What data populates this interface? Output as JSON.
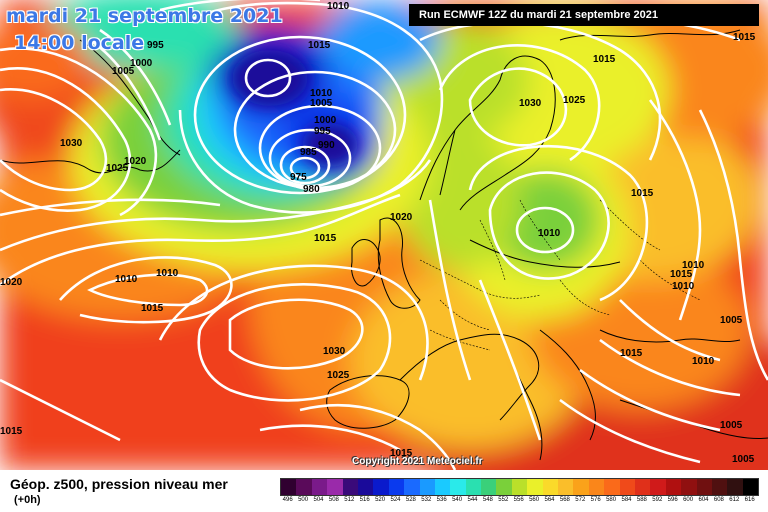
{
  "header": {
    "date": "mardi 21 septembre 2021",
    "time": "14:00 locale",
    "run": "Run ECMWF 12Z du mardi 21 septembre 2021"
  },
  "copyright": "Copyright 2021 Meteociel.fr",
  "footer": {
    "title": "Géop. z500, pression niveau mer",
    "subtitle": "(+0h)"
  },
  "legend": {
    "values": [
      "496",
      "500",
      "504",
      "508",
      "512",
      "516",
      "520",
      "524",
      "528",
      "532",
      "536",
      "540",
      "544",
      "548",
      "552",
      "556",
      "560",
      "564",
      "568",
      "572",
      "576",
      "580",
      "584",
      "588",
      "592",
      "596",
      "600",
      "604",
      "608",
      "612",
      "616"
    ],
    "colors": [
      "#300030",
      "#5a0a5a",
      "#7a1a8a",
      "#9a2aaa",
      "#3a0a7a",
      "#1a0a9a",
      "#0a1acc",
      "#0a3aee",
      "#1a6aff",
      "#1a9aff",
      "#1acaff",
      "#2aeaea",
      "#2ae0b0",
      "#3ad07a",
      "#7ad03a",
      "#bae02a",
      "#eaf02a",
      "#fada2a",
      "#fabe2a",
      "#faa21a",
      "#fa861a",
      "#fa6a1a",
      "#f04a1a",
      "#e0301a",
      "#d01a1a",
      "#b01010",
      "#901010",
      "#701010",
      "#501010",
      "#301010",
      "#000000"
    ]
  },
  "isobars": [
    {
      "label": "1010",
      "pos": "top-center"
    },
    {
      "label": "1015",
      "pos": "north-atlantic"
    },
    {
      "label": "1010",
      "pos": "low-north"
    },
    {
      "label": "1005",
      "pos": "low-north"
    },
    {
      "label": "1000",
      "pos": "low"
    },
    {
      "label": "995",
      "pos": "low"
    },
    {
      "label": "990",
      "pos": "low"
    },
    {
      "label": "985",
      "pos": "low-center"
    },
    {
      "label": "975",
      "pos": "low-center"
    },
    {
      "label": "980",
      "pos": "low-center"
    },
    {
      "label": "995",
      "pos": "greenland"
    },
    {
      "label": "1000",
      "pos": "greenland"
    },
    {
      "label": "1005",
      "pos": "greenland"
    },
    {
      "label": "1030",
      "pos": "west"
    },
    {
      "label": "1020",
      "pos": "west"
    },
    {
      "label": "1025",
      "pos": "west"
    },
    {
      "label": "1020",
      "pos": "far-west"
    },
    {
      "label": "1010",
      "pos": "mid-atlantic"
    },
    {
      "label": "1010",
      "pos": "mid-atlantic"
    },
    {
      "label": "1015",
      "pos": "mid-atlantic"
    },
    {
      "label": "1015",
      "pos": "mid-atlantic"
    },
    {
      "label": "1020",
      "pos": "north-sea"
    },
    {
      "label": "1030",
      "pos": "azores"
    },
    {
      "label": "1025",
      "pos": "azores"
    },
    {
      "label": "1030",
      "pos": "scandinavia"
    },
    {
      "label": "1025",
      "pos": "scandinavia"
    },
    {
      "label": "1015",
      "pos": "north-east"
    },
    {
      "label": "1015",
      "pos": "top-right"
    },
    {
      "label": "1015",
      "pos": "russia"
    },
    {
      "label": "1010",
      "pos": "poland"
    },
    {
      "label": "1010",
      "pos": "east"
    },
    {
      "label": "1015",
      "pos": "east"
    },
    {
      "label": "1010",
      "pos": "east"
    },
    {
      "label": "1005",
      "pos": "east"
    },
    {
      "label": "1015",
      "pos": "balkans"
    },
    {
      "label": "1010",
      "pos": "turkey"
    },
    {
      "label": "1005",
      "pos": "middle-east"
    },
    {
      "label": "1005",
      "pos": "middle-east"
    },
    {
      "label": "1015",
      "pos": "south-west"
    },
    {
      "label": "1015",
      "pos": "africa"
    }
  ]
}
